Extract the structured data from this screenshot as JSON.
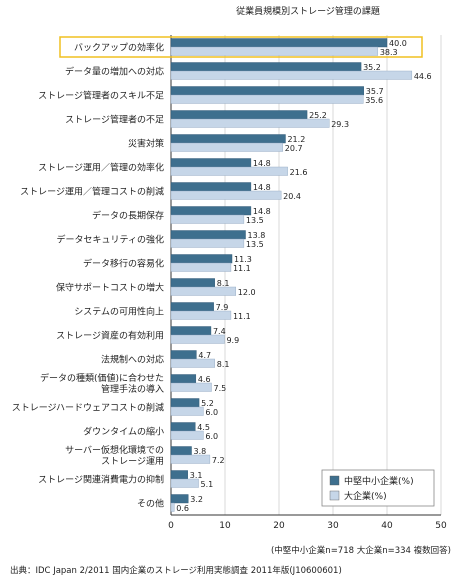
{
  "chart_data": {
    "type": "bar",
    "orientation": "horizontal",
    "title": "従業員規模別ストレージ管理の課題",
    "categories": [
      "バックアップの効率化",
      "データ量の増加への対応",
      "ストレージ管理者のスキル不足",
      "ストレージ管理者の不足",
      "災害対策",
      "ストレージ運用／管理の効率化",
      "ストレージ運用／管理コストの削減",
      "データの長期保存",
      "データセキュリティの強化",
      "データ移行の容易化",
      "保守サポートコストの増大",
      "システムの可用性向上",
      "ストレージ資産の有効利用",
      "法規制への対応",
      "データの種類(価値)に合わせた管理手法の導入",
      "ストレージハードウェアコストの削減",
      "ダウンタイムの縮小",
      "サーバー仮想化環境でのストレージ運用",
      "ストレージ関連消費電力の抑制",
      "その他"
    ],
    "series": [
      {
        "name": "中堅中小企業(%)",
        "color": "#3e6f8e",
        "values": [
          40.0,
          35.2,
          35.7,
          25.2,
          21.2,
          14.8,
          14.8,
          14.8,
          13.8,
          11.3,
          8.1,
          7.9,
          7.4,
          4.7,
          4.6,
          5.2,
          4.5,
          3.8,
          3.1,
          3.2
        ]
      },
      {
        "name": "大企業(%)",
        "color": "#c6d6e8",
        "values": [
          38.3,
          44.6,
          35.6,
          29.3,
          20.7,
          21.6,
          20.4,
          13.5,
          13.5,
          11.1,
          12.0,
          11.1,
          9.9,
          8.1,
          7.5,
          6.0,
          6.0,
          7.2,
          5.1,
          0.6
        ]
      }
    ],
    "xlim": [
      0,
      50
    ],
    "xticks": [
      0,
      10,
      20,
      30,
      40,
      50
    ],
    "grid": true,
    "legend_position": "bottom-right",
    "highlight_category": "バックアップの効率化",
    "highlight_color": "#f0c020",
    "footnote": "(中堅中小企業n=718 大企業n=334 複数回答)",
    "source": "出典：IDC Japan 2/2011 国内企業のストレージ利用実態調査 2011年版(J10600601)"
  }
}
